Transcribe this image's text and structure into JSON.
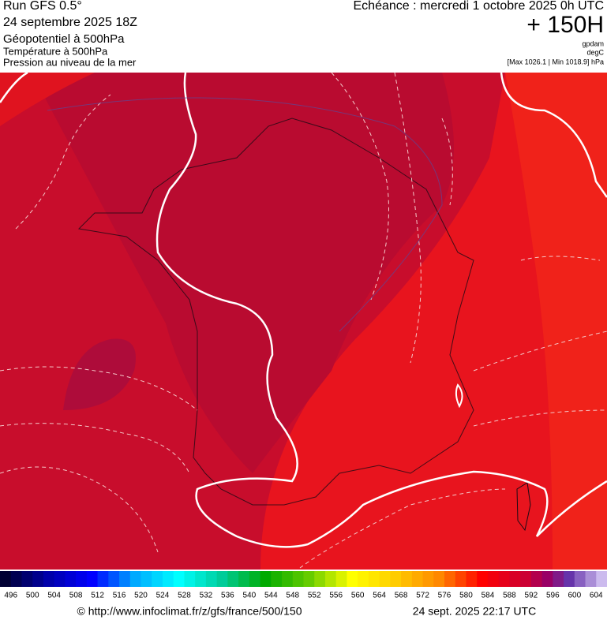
{
  "header": {
    "run": "Run GFS 0.5°",
    "date": "24 septembre 2025 18Z",
    "title": "Géopotentiel à 500hPa",
    "line2": "Température à 500hPa",
    "line3": "Pression au niveau de la mer",
    "echeance": "Echéance : mercredi 1 octobre 2025 0h UTC",
    "offset": "+ 150H",
    "unit1": "gpdam",
    "unit2": "degC",
    "pressure": "[Max 1026.1 | Min 1018.9] hPa"
  },
  "colorbar": {
    "labels": [
      496,
      500,
      504,
      508,
      512,
      516,
      520,
      524,
      528,
      532,
      536,
      540,
      544,
      548,
      552,
      556,
      560,
      564,
      568,
      572,
      576,
      580,
      584,
      588,
      592,
      596,
      600,
      604
    ]
  },
  "footer": {
    "url": "© http://www.infoclimat.fr/z/gfs/france/500/150",
    "timestamp": "24 sept. 2025 22:17 UTC"
  }
}
